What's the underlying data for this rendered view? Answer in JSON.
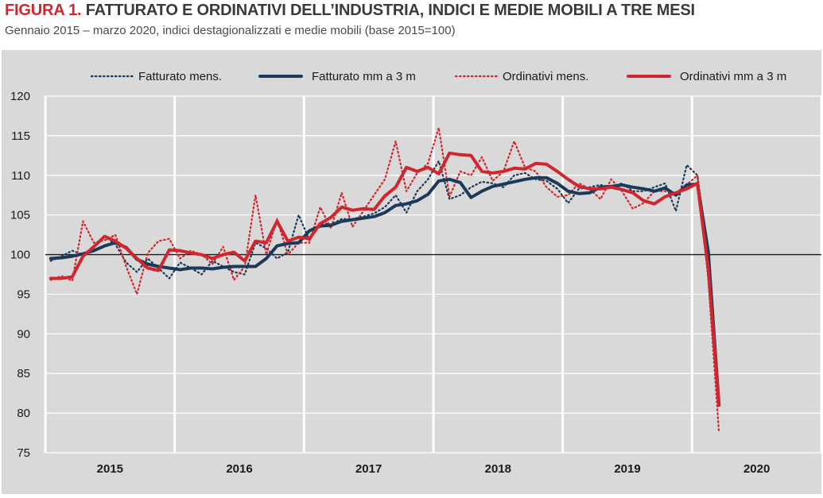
{
  "header": {
    "figure_label": "FIGURA 1.",
    "title": "FATTURATO E ORDINATIVI DELL’INDUSTRIA, INDICI E MEDIE MOBILI A TRE MESI",
    "subtitle": "Gennaio 2015 – marzo 2020, indici destagionalizzati e medie mobili (base 2015=100)"
  },
  "colors": {
    "fatturato": "#1b3a5a",
    "ordinativi": "#d0262e",
    "background": "#d9d9d9",
    "grid": "#ffffff",
    "baseline": "#1a1a1a"
  },
  "chart_data": {
    "type": "line",
    "title": "FATTURATO E ORDINATIVI DELL’INDUSTRIA, INDICI E MEDIE MOBILI A TRE MESI",
    "subtitle": "Gennaio 2015 – marzo 2020, indici destagionalizzati e medie mobili (base 2015=100)",
    "xlabel": "",
    "ylabel": "",
    "ylim": [
      75,
      120
    ],
    "yticks": [
      75,
      80,
      85,
      90,
      95,
      100,
      105,
      110,
      115,
      120
    ],
    "xtick_labels": [
      "2015",
      "2016",
      "2017",
      "2018",
      "2019",
      "2020"
    ],
    "x_start": "2015-01",
    "x_end_axis": "2020-12",
    "reference_line": 100,
    "grid": true,
    "legend_position": "top",
    "series": [
      {
        "name": "Fatturato mens.",
        "style": "dotted",
        "color": "#1b3a5a",
        "values": [
          99.2,
          99.8,
          100.5,
          100.0,
          101.0,
          102.3,
          101.3,
          99.0,
          97.8,
          99.5,
          98.3,
          97.0,
          99.0,
          98.3,
          97.5,
          99.2,
          98.5,
          97.8,
          97.5,
          101.5,
          100.8,
          99.5,
          100.3,
          105.0,
          101.8,
          104.0,
          103.8,
          104.5,
          104.5,
          104.8,
          105.2,
          106.0,
          107.5,
          105.3,
          108.0,
          109.5,
          111.8,
          107.0,
          107.5,
          108.5,
          109.2,
          109.0,
          108.5,
          110.0,
          110.3,
          109.5,
          109.3,
          108.3,
          106.5,
          108.3,
          108.5,
          108.8,
          108.5,
          109.0,
          108.0,
          108.0,
          108.5,
          109.0,
          105.5,
          111.3,
          110.0,
          100.0,
          81.0
        ]
      },
      {
        "name": "Fatturato mm a 3 m",
        "style": "solid",
        "color": "#1b3a5a",
        "values": [
          99.5,
          99.6,
          99.8,
          100.1,
          100.5,
          101.1,
          101.5,
          100.9,
          99.4,
          98.8,
          98.5,
          98.3,
          98.1,
          98.3,
          98.3,
          98.2,
          98.4,
          98.5,
          98.5,
          98.5,
          99.5,
          101.1,
          101.4,
          101.5,
          103.0,
          103.6,
          103.7,
          104.2,
          104.4,
          104.6,
          104.8,
          105.3,
          106.2,
          106.4,
          106.8,
          107.6,
          109.3,
          109.5,
          109.1,
          107.2,
          108.0,
          108.6,
          108.9,
          109.2,
          109.5,
          109.7,
          109.7,
          109.0,
          108.0,
          107.7,
          107.8,
          108.5,
          108.6,
          108.8,
          108.5,
          108.3,
          108.0,
          108.4,
          107.5,
          108.8,
          108.9,
          100.4,
          81.0
        ]
      },
      {
        "name": "Ordinativi mens.",
        "style": "dotted",
        "color": "#d0262e",
        "values": [
          96.8,
          97.3,
          96.7,
          104.2,
          101.5,
          101.8,
          102.5,
          98.5,
          95.0,
          100.2,
          101.7,
          102.0,
          99.5,
          100.5,
          100.0,
          98.8,
          101.0,
          96.8,
          98.5,
          107.5,
          100.0,
          104.5,
          100.0,
          101.5,
          101.5,
          106.0,
          103.3,
          107.8,
          103.5,
          105.5,
          107.5,
          109.5,
          114.3,
          108.0,
          110.3,
          111.5,
          116.0,
          107.3,
          110.5,
          110.0,
          112.3,
          109.3,
          110.5,
          114.3,
          111.0,
          110.5,
          108.5,
          107.3,
          107.5,
          109.0,
          108.3,
          107.0,
          109.5,
          108.0,
          105.8,
          106.5,
          108.0,
          108.0,
          107.8,
          108.8,
          110.0,
          96.8,
          77.5
        ]
      },
      {
        "name": "Ordinativi mm a 3 m",
        "style": "solid",
        "color": "#d0262e",
        "values": [
          97.0,
          97.0,
          97.2,
          99.8,
          101.0,
          102.3,
          101.7,
          100.8,
          99.5,
          98.3,
          98.0,
          100.6,
          100.5,
          100.2,
          100.0,
          99.5,
          100.0,
          100.3,
          99.2,
          101.7,
          101.5,
          104.2,
          101.7,
          102.2,
          102.0,
          103.9,
          104.7,
          106.0,
          105.6,
          105.8,
          105.7,
          107.4,
          108.5,
          111.0,
          110.5,
          111.0,
          110.2,
          112.8,
          112.6,
          112.5,
          110.5,
          110.3,
          110.5,
          110.9,
          110.8,
          111.5,
          111.4,
          110.5,
          109.5,
          108.6,
          108.3,
          108.3,
          108.5,
          108.2,
          107.8,
          106.8,
          106.4,
          107.3,
          107.8,
          108.3,
          109.0,
          98.2,
          81.0
        ]
      }
    ]
  }
}
